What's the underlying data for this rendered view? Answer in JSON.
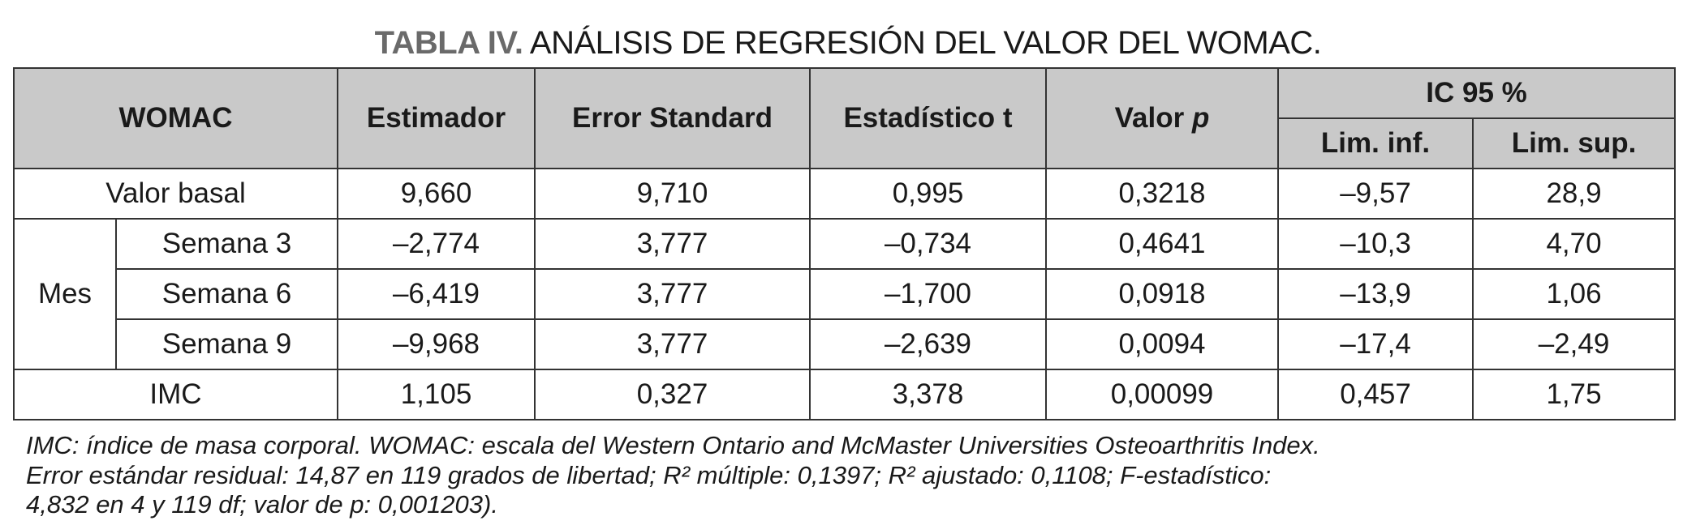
{
  "title": {
    "label": "TABLA IV.",
    "text": "ANÁLISIS DE REGRESIÓN DEL VALOR DEL WOMAC."
  },
  "header": {
    "womac": "WOMAC",
    "estimador": "Estimador",
    "error": "Error Standard",
    "t": "Estadístico t",
    "p_prefix": "Valor ",
    "p_italic": "p",
    "ic": "IC 95 %",
    "inf": "Lim. inf.",
    "sup": "Lim. sup."
  },
  "group_mes": "Mes",
  "rows": [
    {
      "label": "Valor basal",
      "values": [
        "9,660",
        "9,710",
        "0,995",
        "0,3218",
        "–9,57",
        "28,9"
      ]
    },
    {
      "label": "Semana 3",
      "values": [
        "–2,774",
        "3,777",
        "–0,734",
        "0,4641",
        "–10,3",
        "4,70"
      ]
    },
    {
      "label": "Semana 6",
      "values": [
        "–6,419",
        "3,777",
        "–1,700",
        "0,0918",
        "–13,9",
        "1,06"
      ]
    },
    {
      "label": "Semana 9",
      "values": [
        "–9,968",
        "3,777",
        "–2,639",
        "0,0094",
        "–17,4",
        "–2,49"
      ]
    },
    {
      "label": "IMC",
      "values": [
        "1,105",
        "0,327",
        "3,378",
        "0,00099",
        "0,457",
        "1,75"
      ]
    }
  ],
  "footnote": [
    "IMC: índice de masa corporal. WOMAC: escala del Western Ontario and McMaster Universities Osteoarthritis Index.",
    "Error estándar residual: 14,87 en 119 grados de libertad; R² múltiple: 0,1397; R² ajustado: 0,1108; F-estadístico:",
    "4,832 en 4 y 119 df; valor de p: 0,001203)."
  ]
}
